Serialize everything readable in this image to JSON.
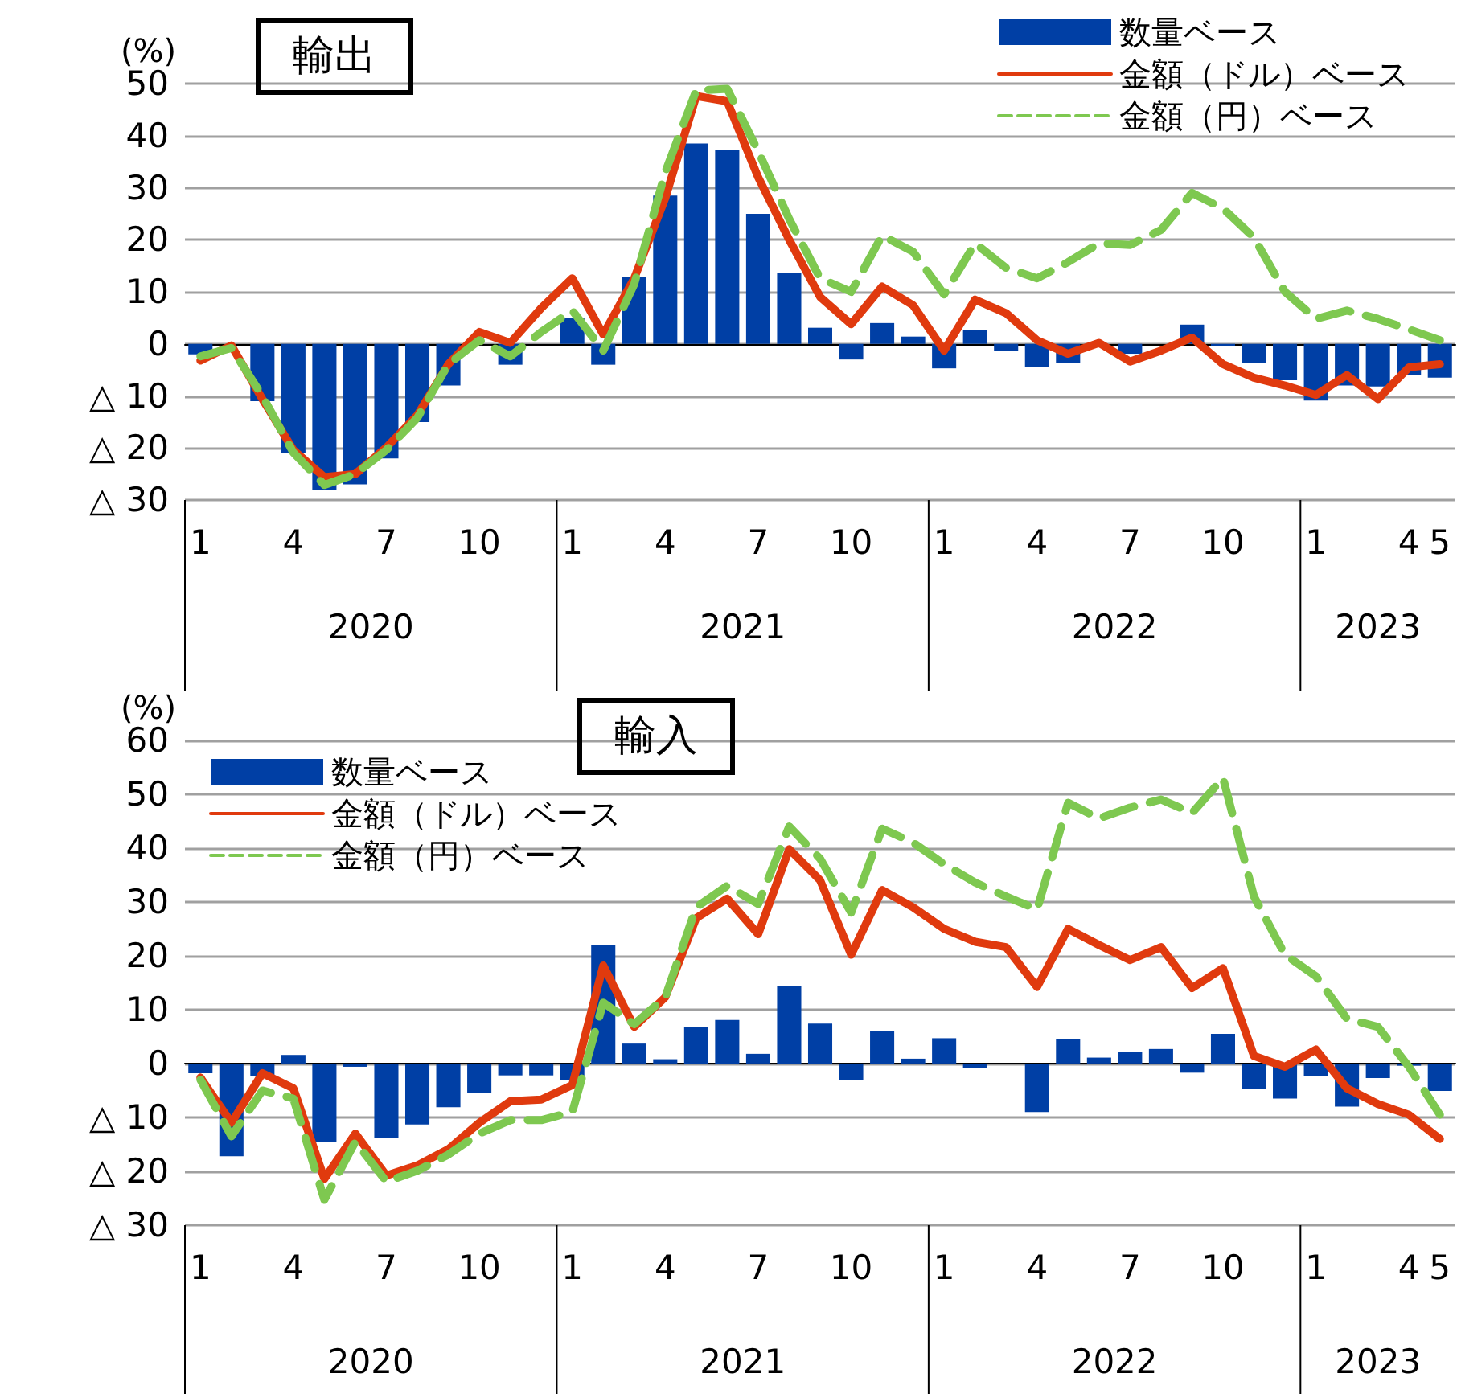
{
  "chart_data": [
    {
      "type": "bar",
      "title": "輸出",
      "ylabel": "(%)",
      "categories": [
        "1",
        null,
        null,
        "4",
        null,
        null,
        "7",
        null,
        null,
        "10",
        null,
        null,
        "1",
        null,
        null,
        "4",
        null,
        null,
        "7",
        null,
        null,
        "10",
        null,
        null,
        "1",
        null,
        null,
        "4",
        null,
        null,
        "7",
        null,
        null,
        "10",
        null,
        null,
        "1",
        null,
        null,
        "4",
        "5"
      ],
      "annotations": [
        "2020",
        "2021",
        "2022",
        "2023"
      ],
      "ylim": [
        -30,
        50
      ],
      "yticks": [
        {
          "value": -30,
          "label": "△ 30"
        },
        {
          "value": -20,
          "label": "△ 20"
        },
        {
          "value": -10,
          "label": "△ 10"
        },
        0,
        10,
        20,
        30,
        40,
        50
      ],
      "grid": "y",
      "legend": "top right",
      "marker": "none",
      "series": [
        {
          "name": "数量ベース",
          "color": "#003fa5",
          "values": [
            -2,
            0,
            -11,
            -21,
            -28,
            -27,
            -22,
            -15,
            -8,
            null,
            -4,
            0,
            5,
            -4,
            12.8,
            28.5,
            38.5,
            37.2,
            25,
            13.6,
            3.1,
            -3,
            4,
            1.4,
            -4.7,
            2.6,
            -1.4,
            -4.5,
            -3.6,
            null,
            -1.9,
            0,
            3.7,
            -0.5,
            -3.6,
            -7,
            -10.9,
            -8,
            -8.2,
            -6,
            -6.5
          ]
        },
        {
          "name": "金額（ドル）ベース",
          "type": "line",
          "color": "#e03a0e",
          "line_style": "solid",
          "values": [
            -3.2,
            -0.3,
            -10.6,
            -20.4,
            -25.6,
            -25,
            -19.9,
            -13.7,
            -3.9,
            2.3,
            0.2,
            6.9,
            12.6,
            1.8,
            12.6,
            28,
            47.6,
            46.6,
            32,
            20,
            9,
            3.8,
            11,
            7.4,
            -1.3,
            8.5,
            5.9,
            0.7,
            -1.9,
            0.2,
            -3.4,
            -1.3,
            1.2,
            -3.9,
            -6.5,
            -8,
            -9.8,
            -6,
            -10.6,
            -4.5,
            -3.9
          ]
        },
        {
          "name": "金額（円）ベース",
          "type": "line",
          "color": "#7ec850",
          "line_style": "dashed",
          "values": [
            -2.4,
            -0.8,
            -10,
            -20.9,
            -27.1,
            -25,
            -20.4,
            -14.2,
            -3.9,
            0.7,
            -2.4,
            2.3,
            6.4,
            -1.3,
            11.5,
            33,
            48.7,
            49,
            37,
            24,
            12.6,
            10,
            20.8,
            17.7,
            9.5,
            19.3,
            14.6,
            12.6,
            15.7,
            19.3,
            19,
            21.9,
            29,
            26,
            20.4,
            10,
            4.8,
            6.4,
            4.8,
            2.8,
            0.7
          ]
        }
      ]
    },
    {
      "type": "bar",
      "title": "輸入",
      "ylabel": "(%)",
      "categories": [
        "1",
        null,
        null,
        "4",
        null,
        null,
        "7",
        null,
        null,
        "10",
        null,
        null,
        "1",
        null,
        null,
        "4",
        null,
        null,
        "7",
        null,
        null,
        "10",
        null,
        null,
        "1",
        null,
        null,
        "4",
        null,
        null,
        "7",
        null,
        null,
        "10",
        null,
        null,
        "1",
        null,
        null,
        "4",
        "5"
      ],
      "annotations": [
        "2020",
        "2021",
        "2022",
        "2023"
      ],
      "ylim": [
        -30,
        60
      ],
      "yticks": [
        {
          "value": -30,
          "label": "△ 30"
        },
        {
          "value": -20,
          "label": "△ 20"
        },
        {
          "value": -10,
          "label": "△ 10"
        },
        0,
        10,
        20,
        30,
        40,
        50,
        60
      ],
      "grid": "y",
      "legend": "top left",
      "marker": "none",
      "series": [
        {
          "name": "数量ベース",
          "color": "#003fa5",
          "values": [
            -1.8,
            -17.2,
            -2.4,
            1.6,
            -14.5,
            -0.6,
            -13.8,
            -11.3,
            -8.1,
            -5.5,
            -2.2,
            -2.2,
            -3,
            22,
            3.7,
            0.8,
            6.7,
            8.1,
            1.8,
            14.4,
            7.4,
            -3.1,
            6,
            0.9,
            4.7,
            -0.9,
            0,
            -9,
            4.6,
            1.1,
            2.1,
            2.7,
            -1.7,
            5.5,
            -4.8,
            -6.5,
            -2.4,
            -8,
            -2.7,
            -0.4,
            -5.1
          ]
        },
        {
          "name": "金額（ドル）ベース",
          "type": "line",
          "color": "#e03a0e",
          "line_style": "solid",
          "values": [
            -2.6,
            -11,
            -1.8,
            -4.6,
            -21.4,
            -13,
            -20.8,
            -18.9,
            -15.9,
            -11,
            -7,
            -6.7,
            -4,
            18.2,
            6.8,
            12.3,
            27,
            30.6,
            24,
            39.8,
            34,
            20.2,
            32.2,
            29,
            25,
            22.6,
            21.6,
            14.2,
            25,
            22,
            19.2,
            21.6,
            14,
            17.7,
            1.4,
            -0.6,
            2.6,
            -4.6,
            -7.5,
            -9.5,
            -14
          ]
        },
        {
          "name": "金額（円）ベース",
          "type": "line",
          "color": "#7ec850",
          "line_style": "dashed",
          "values": [
            -3,
            -13.5,
            -5,
            -6.5,
            -25.3,
            -14.5,
            -21.9,
            -19.9,
            -16.9,
            -13,
            -10.5,
            -10.5,
            -9,
            11.3,
            7.3,
            12.3,
            29,
            33,
            29.6,
            44,
            38,
            28,
            43.6,
            41,
            37,
            33.6,
            31,
            28.6,
            48.4,
            45.5,
            47.5,
            49,
            46.5,
            53,
            31,
            20.2,
            16.2,
            8.3,
            6.8,
            -0.6,
            -9.5
          ]
        }
      ]
    }
  ]
}
